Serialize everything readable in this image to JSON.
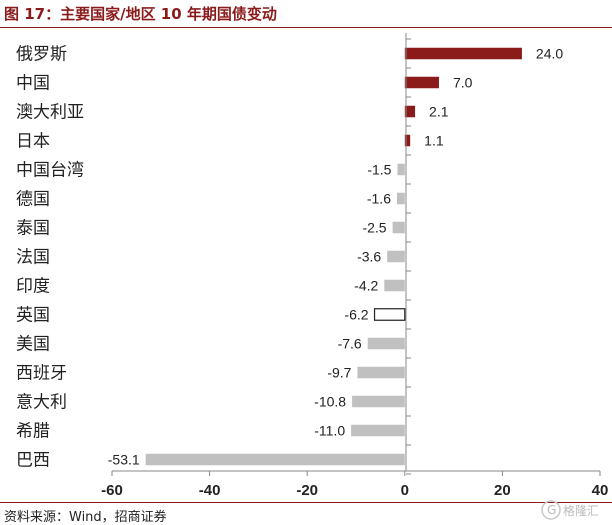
{
  "header": {
    "title": "图 17：主要国家/地区 10 年期国债变动"
  },
  "footer": {
    "source": "资料来源：Wind，招商证券",
    "watermark": "格隆汇"
  },
  "colors": {
    "positive": "#8b1a1a",
    "negative": "#c0c0c0",
    "highlight_stroke": "#222222",
    "title": "#8b1a1a"
  },
  "chart_data": {
    "type": "bar",
    "orientation": "horizontal",
    "title": "主要国家/地区 10 年期国债变动",
    "categories": [
      "俄罗斯",
      "中国",
      "澳大利亚",
      "日本",
      "中国台湾",
      "德国",
      "泰国",
      "法国",
      "印度",
      "英国",
      "美国",
      "西班牙",
      "意大利",
      "希腊",
      "巴西"
    ],
    "values": [
      24.0,
      7.0,
      2.1,
      1.1,
      -1.5,
      -1.6,
      -2.5,
      -3.6,
      -4.2,
      -6.2,
      -7.6,
      -9.7,
      -10.8,
      -11.0,
      -53.1
    ],
    "labels": [
      "24.0",
      "7.0",
      "2.1",
      "1.1",
      "-1.5",
      "-1.6",
      "-2.5",
      "-3.6",
      "-4.2",
      "-6.2",
      "-7.6",
      "-9.7",
      "-10.8",
      "-11.0",
      "-53.1"
    ],
    "highlight": "英国",
    "xlim": [
      -60,
      40
    ],
    "xticks": [
      -60,
      -40,
      -20,
      0,
      20,
      40
    ],
    "xtick_labels": [
      "-60",
      "-40",
      "-20",
      "0",
      "20",
      "40"
    ],
    "xlabel": "",
    "ylabel": "",
    "grid": false,
    "legend": "none"
  }
}
